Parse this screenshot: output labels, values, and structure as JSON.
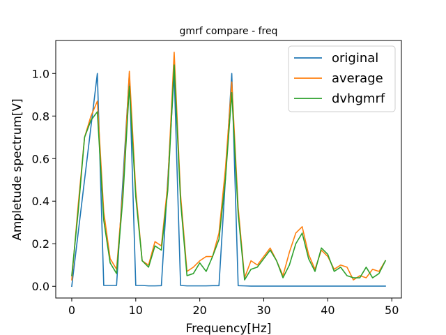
{
  "chart_data": {
    "type": "line",
    "title": "gmrf compare - freq",
    "xlabel": "Frequency[Hz]",
    "ylabel": "Ampletude spectrum[V]",
    "xlim": [
      -2.5,
      51.5
    ],
    "ylim": [
      -0.055,
      1.155
    ],
    "xticks": [
      0,
      10,
      20,
      30,
      40,
      50
    ],
    "yticks": [
      0.0,
      0.2,
      0.4,
      0.6,
      0.8,
      1.0
    ],
    "xtick_labels": [
      "0",
      "10",
      "20",
      "30",
      "40",
      "50"
    ],
    "ytick_labels": [
      "0.0",
      "0.2",
      "0.4",
      "0.6",
      "0.8",
      "1.0"
    ],
    "grid": false,
    "legend_position": "top-right",
    "series": [
      {
        "name": "original",
        "color": "#1f77b4",
        "x": [
          0,
          4,
          5,
          6,
          7,
          9,
          10,
          11,
          12,
          13,
          14,
          16,
          17,
          18,
          19,
          20,
          21,
          22,
          23,
          25,
          26,
          27,
          28,
          29,
          30,
          31,
          32,
          33,
          34,
          35,
          36,
          37,
          38,
          39,
          40,
          41,
          42,
          43,
          44,
          45,
          46,
          47,
          48,
          49
        ],
        "values": [
          0.0,
          1.0,
          0.004,
          0.004,
          0.004,
          1.0,
          0.004,
          0.004,
          0.002,
          0.002,
          0.003,
          1.0,
          0.004,
          0.002,
          0.002,
          0.002,
          0.002,
          0.003,
          0.003,
          1.0,
          0.003,
          0.002,
          0.001,
          0.001,
          0.001,
          0.001,
          0.001,
          0.001,
          0.001,
          0.001,
          0.001,
          0.001,
          0.001,
          0.001,
          0.001,
          0.001,
          0.001,
          0.001,
          0.001,
          0.001,
          0.001,
          0.001,
          0.001,
          0.001
        ]
      },
      {
        "name": "average",
        "color": "#ff7f0e",
        "x": [
          0,
          1,
          2,
          3,
          4,
          5,
          6,
          7,
          8,
          9,
          10,
          11,
          12,
          13,
          14,
          15,
          16,
          17,
          18,
          19,
          20,
          21,
          22,
          23,
          24,
          25,
          26,
          27,
          28,
          29,
          30,
          31,
          32,
          33,
          34,
          35,
          36,
          37,
          38,
          39,
          40,
          41,
          42,
          43,
          44,
          45,
          46,
          47,
          48,
          49
        ],
        "values": [
          0.03,
          0.38,
          0.7,
          0.8,
          0.87,
          0.35,
          0.13,
          0.08,
          0.45,
          1.01,
          0.45,
          0.12,
          0.1,
          0.21,
          0.19,
          0.48,
          1.1,
          0.43,
          0.07,
          0.09,
          0.12,
          0.14,
          0.14,
          0.25,
          0.55,
          0.96,
          0.37,
          0.04,
          0.12,
          0.1,
          0.14,
          0.18,
          0.12,
          0.05,
          0.16,
          0.25,
          0.28,
          0.15,
          0.08,
          0.17,
          0.14,
          0.08,
          0.1,
          0.09,
          0.03,
          0.05,
          0.04,
          0.08,
          0.07,
          0.12
        ]
      },
      {
        "name": "dvhgmrf",
        "color": "#2ca02c",
        "x": [
          0,
          1,
          2,
          3,
          4,
          5,
          6,
          7,
          8,
          9,
          10,
          11,
          12,
          13,
          14,
          15,
          16,
          17,
          18,
          19,
          20,
          21,
          22,
          23,
          24,
          25,
          26,
          27,
          28,
          29,
          30,
          31,
          32,
          33,
          34,
          35,
          36,
          37,
          38,
          39,
          40,
          41,
          42,
          43,
          44,
          45,
          46,
          47,
          48,
          49
        ],
        "values": [
          0.05,
          0.35,
          0.7,
          0.78,
          0.82,
          0.31,
          0.11,
          0.06,
          0.42,
          0.94,
          0.42,
          0.12,
          0.09,
          0.19,
          0.17,
          0.45,
          1.04,
          0.4,
          0.05,
          0.06,
          0.11,
          0.07,
          0.14,
          0.22,
          0.5,
          0.91,
          0.34,
          0.03,
          0.08,
          0.09,
          0.13,
          0.17,
          0.12,
          0.04,
          0.1,
          0.2,
          0.25,
          0.13,
          0.07,
          0.18,
          0.15,
          0.07,
          0.09,
          0.05,
          0.04,
          0.04,
          0.09,
          0.04,
          0.06,
          0.12
        ]
      }
    ]
  }
}
